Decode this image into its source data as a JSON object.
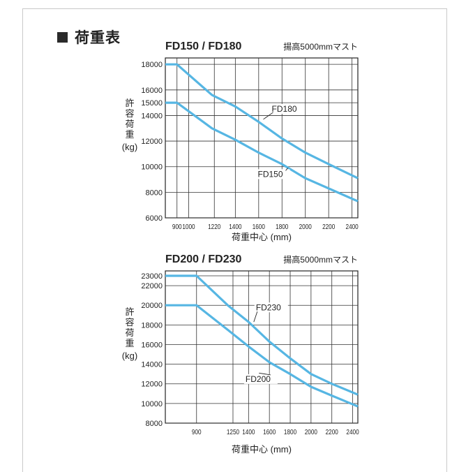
{
  "page": {
    "section_title": "荷重表"
  },
  "chart_data": [
    {
      "type": "line",
      "title": "FD150 / FD180",
      "subtitle": "揚高5000mmマスト",
      "ylabel_chars": [
        "許",
        "容",
        "荷",
        "重"
      ],
      "yunit": "(kg)",
      "xlabel": "荷重中心 (mm)",
      "xlim": [
        800,
        2450
      ],
      "ylim": [
        6000,
        18500
      ],
      "x_ticks": [
        900,
        1000,
        1220,
        1400,
        1600,
        1800,
        2000,
        2200,
        2400
      ],
      "x_tick_labels": [
        "900",
        "1000",
        "1220",
        "1400",
        "1600",
        "1800",
        "2000",
        "2200",
        "2400"
      ],
      "y_ticks": [
        6000,
        8000,
        10000,
        12000,
        14000,
        15000,
        16000,
        18000
      ],
      "y_tick_labels": [
        "6000",
        "8000",
        "10000",
        "12000",
        "14000",
        "15000",
        "16000",
        "18000"
      ],
      "grid": true,
      "series": [
        {
          "name": "FD180",
          "x": [
            800,
            900,
            1200,
            1400,
            1600,
            1800,
            2000,
            2200,
            2450
          ],
          "y": [
            18000,
            18000,
            15600,
            14700,
            13500,
            12200,
            11100,
            10200,
            9100
          ]
        },
        {
          "name": "FD150",
          "x": [
            800,
            900,
            1200,
            1400,
            1600,
            1800,
            2000,
            2200,
            2450
          ],
          "y": [
            15000,
            15000,
            13000,
            12100,
            11100,
            10200,
            9100,
            8300,
            7300
          ]
        }
      ],
      "annotations": [
        {
          "text": "FD180",
          "x": 1640,
          "y": 13700
        },
        {
          "text": "FD150",
          "x": 1850,
          "y": 9900
        }
      ]
    },
    {
      "type": "line",
      "title": "FD200 / FD230",
      "subtitle": "揚高5000mmマスト",
      "ylabel_chars": [
        "許",
        "容",
        "荷",
        "重"
      ],
      "yunit": "(kg)",
      "xlabel": "荷重中心 (mm)",
      "xlim": [
        600,
        2450
      ],
      "ylim": [
        8000,
        23500
      ],
      "x_ticks": [
        900,
        1250,
        1400,
        1600,
        1800,
        2000,
        2200,
        2400
      ],
      "x_tick_labels": [
        "900",
        "1250",
        "1400",
        "1600",
        "1800",
        "2000",
        "2200",
        "2400"
      ],
      "y_ticks": [
        8000,
        10000,
        12000,
        14000,
        16000,
        18000,
        20000,
        22000,
        23000
      ],
      "y_tick_labels": [
        "8000",
        "10000",
        "12000",
        "14000",
        "16000",
        "18000",
        "20000",
        "22000",
        "23000"
      ],
      "grid": true,
      "series": [
        {
          "name": "FD230",
          "x": [
            600,
            900,
            1200,
            1400,
            1600,
            1800,
            2000,
            2200,
            2450
          ],
          "y": [
            23000,
            23000,
            20000,
            18300,
            16300,
            14600,
            13000,
            12000,
            10900
          ]
        },
        {
          "name": "FD200",
          "x": [
            600,
            900,
            1200,
            1400,
            1600,
            1800,
            2000,
            2200,
            2450
          ],
          "y": [
            20000,
            20000,
            17500,
            15800,
            14200,
            13000,
            11700,
            10800,
            9700
          ]
        }
      ],
      "annotations": [
        {
          "text": "FD230",
          "x": 1450,
          "y": 18300
        },
        {
          "text": "FD200",
          "x": 1500,
          "y": 13100
        }
      ]
    }
  ]
}
